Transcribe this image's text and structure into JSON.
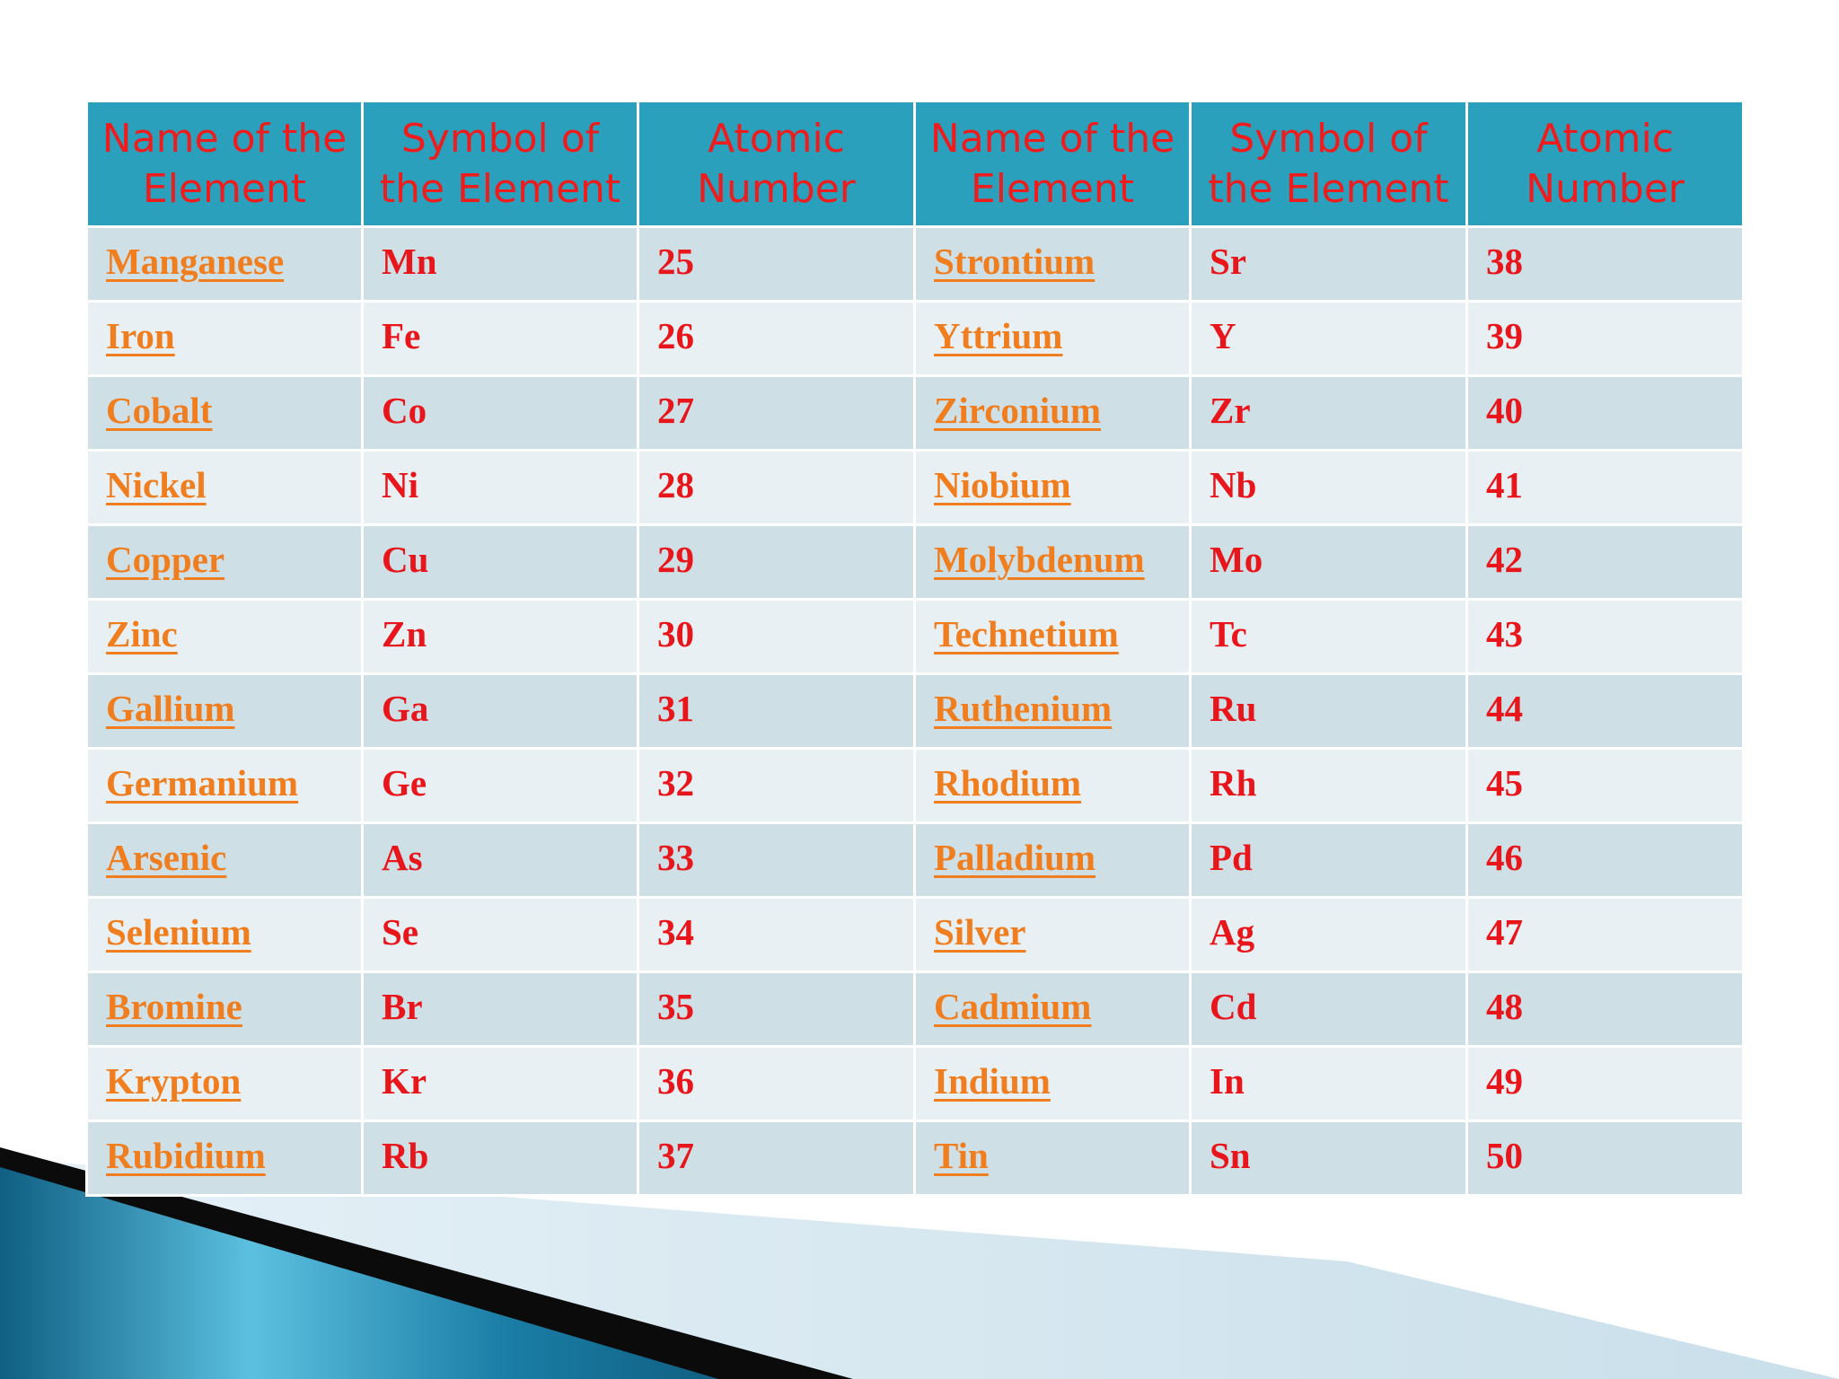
{
  "table": {
    "headers": [
      "Name of the Element",
      "Symbol of the Element",
      "Atomic Number",
      "Name of the Element",
      "Symbol of the Element",
      "Atomic Number"
    ],
    "rows": [
      {
        "left_name": "Manganese",
        "left_symbol": "Mn",
        "left_number": "25",
        "right_name": "Strontium",
        "right_symbol": "Sr",
        "right_number": "38"
      },
      {
        "left_name": "Iron",
        "left_symbol": "Fe",
        "left_number": "26",
        "right_name": "Yttrium",
        "right_symbol": "Y",
        "right_number": "39"
      },
      {
        "left_name": "Cobalt",
        "left_symbol": "Co",
        "left_number": "27",
        "right_name": "Zirconium",
        "right_symbol": "Zr",
        "right_number": "40"
      },
      {
        "left_name": "Nickel",
        "left_symbol": "Ni",
        "left_number": "28",
        "right_name": "Niobium",
        "right_symbol": "Nb",
        "right_number": "41"
      },
      {
        "left_name": "Copper",
        "left_symbol": "Cu",
        "left_number": "29",
        "right_name": "Molybdenum",
        "right_symbol": "Mo",
        "right_number": "42"
      },
      {
        "left_name": "Zinc",
        "left_symbol": "Zn",
        "left_number": "30",
        "right_name": "Technetium",
        "right_symbol": "Tc",
        "right_number": "43"
      },
      {
        "left_name": "Gallium",
        "left_symbol": "Ga",
        "left_number": "31",
        "right_name": "Ruthenium",
        "right_symbol": "Ru",
        "right_number": "44"
      },
      {
        "left_name": "Germanium",
        "left_symbol": "Ge",
        "left_number": "32",
        "right_name": "Rhodium",
        "right_symbol": "Rh",
        "right_number": "45"
      },
      {
        "left_name": "Arsenic",
        "left_symbol": "As",
        "left_number": "33",
        "right_name": "Palladium",
        "right_symbol": "Pd",
        "right_number": "46"
      },
      {
        "left_name": "Selenium",
        "left_symbol": "Se",
        "left_number": "34",
        "right_name": "Silver",
        "right_symbol": "Ag",
        "right_number": "47"
      },
      {
        "left_name": "Bromine",
        "left_symbol": "Br",
        "left_number": "35",
        "right_name": "Cadmium",
        "right_symbol": "Cd",
        "right_number": "48"
      },
      {
        "left_name": "Krypton",
        "left_symbol": "Kr",
        "left_number": "36",
        "right_name": "Indium",
        "right_symbol": "In",
        "right_number": "49"
      },
      {
        "left_name": "Rubidium",
        "left_symbol": "Rb",
        "left_number": "37",
        "right_name": "Tin",
        "right_symbol": "Sn",
        "right_number": "50"
      }
    ]
  },
  "colors": {
    "header_background": "#2ba0bd",
    "header_text": "#ee1c1c",
    "row_dark": "#cfdfe6",
    "row_light": "#e8f0f4",
    "link_text": "#f07e1f",
    "cell_text": "#e8151b"
  }
}
